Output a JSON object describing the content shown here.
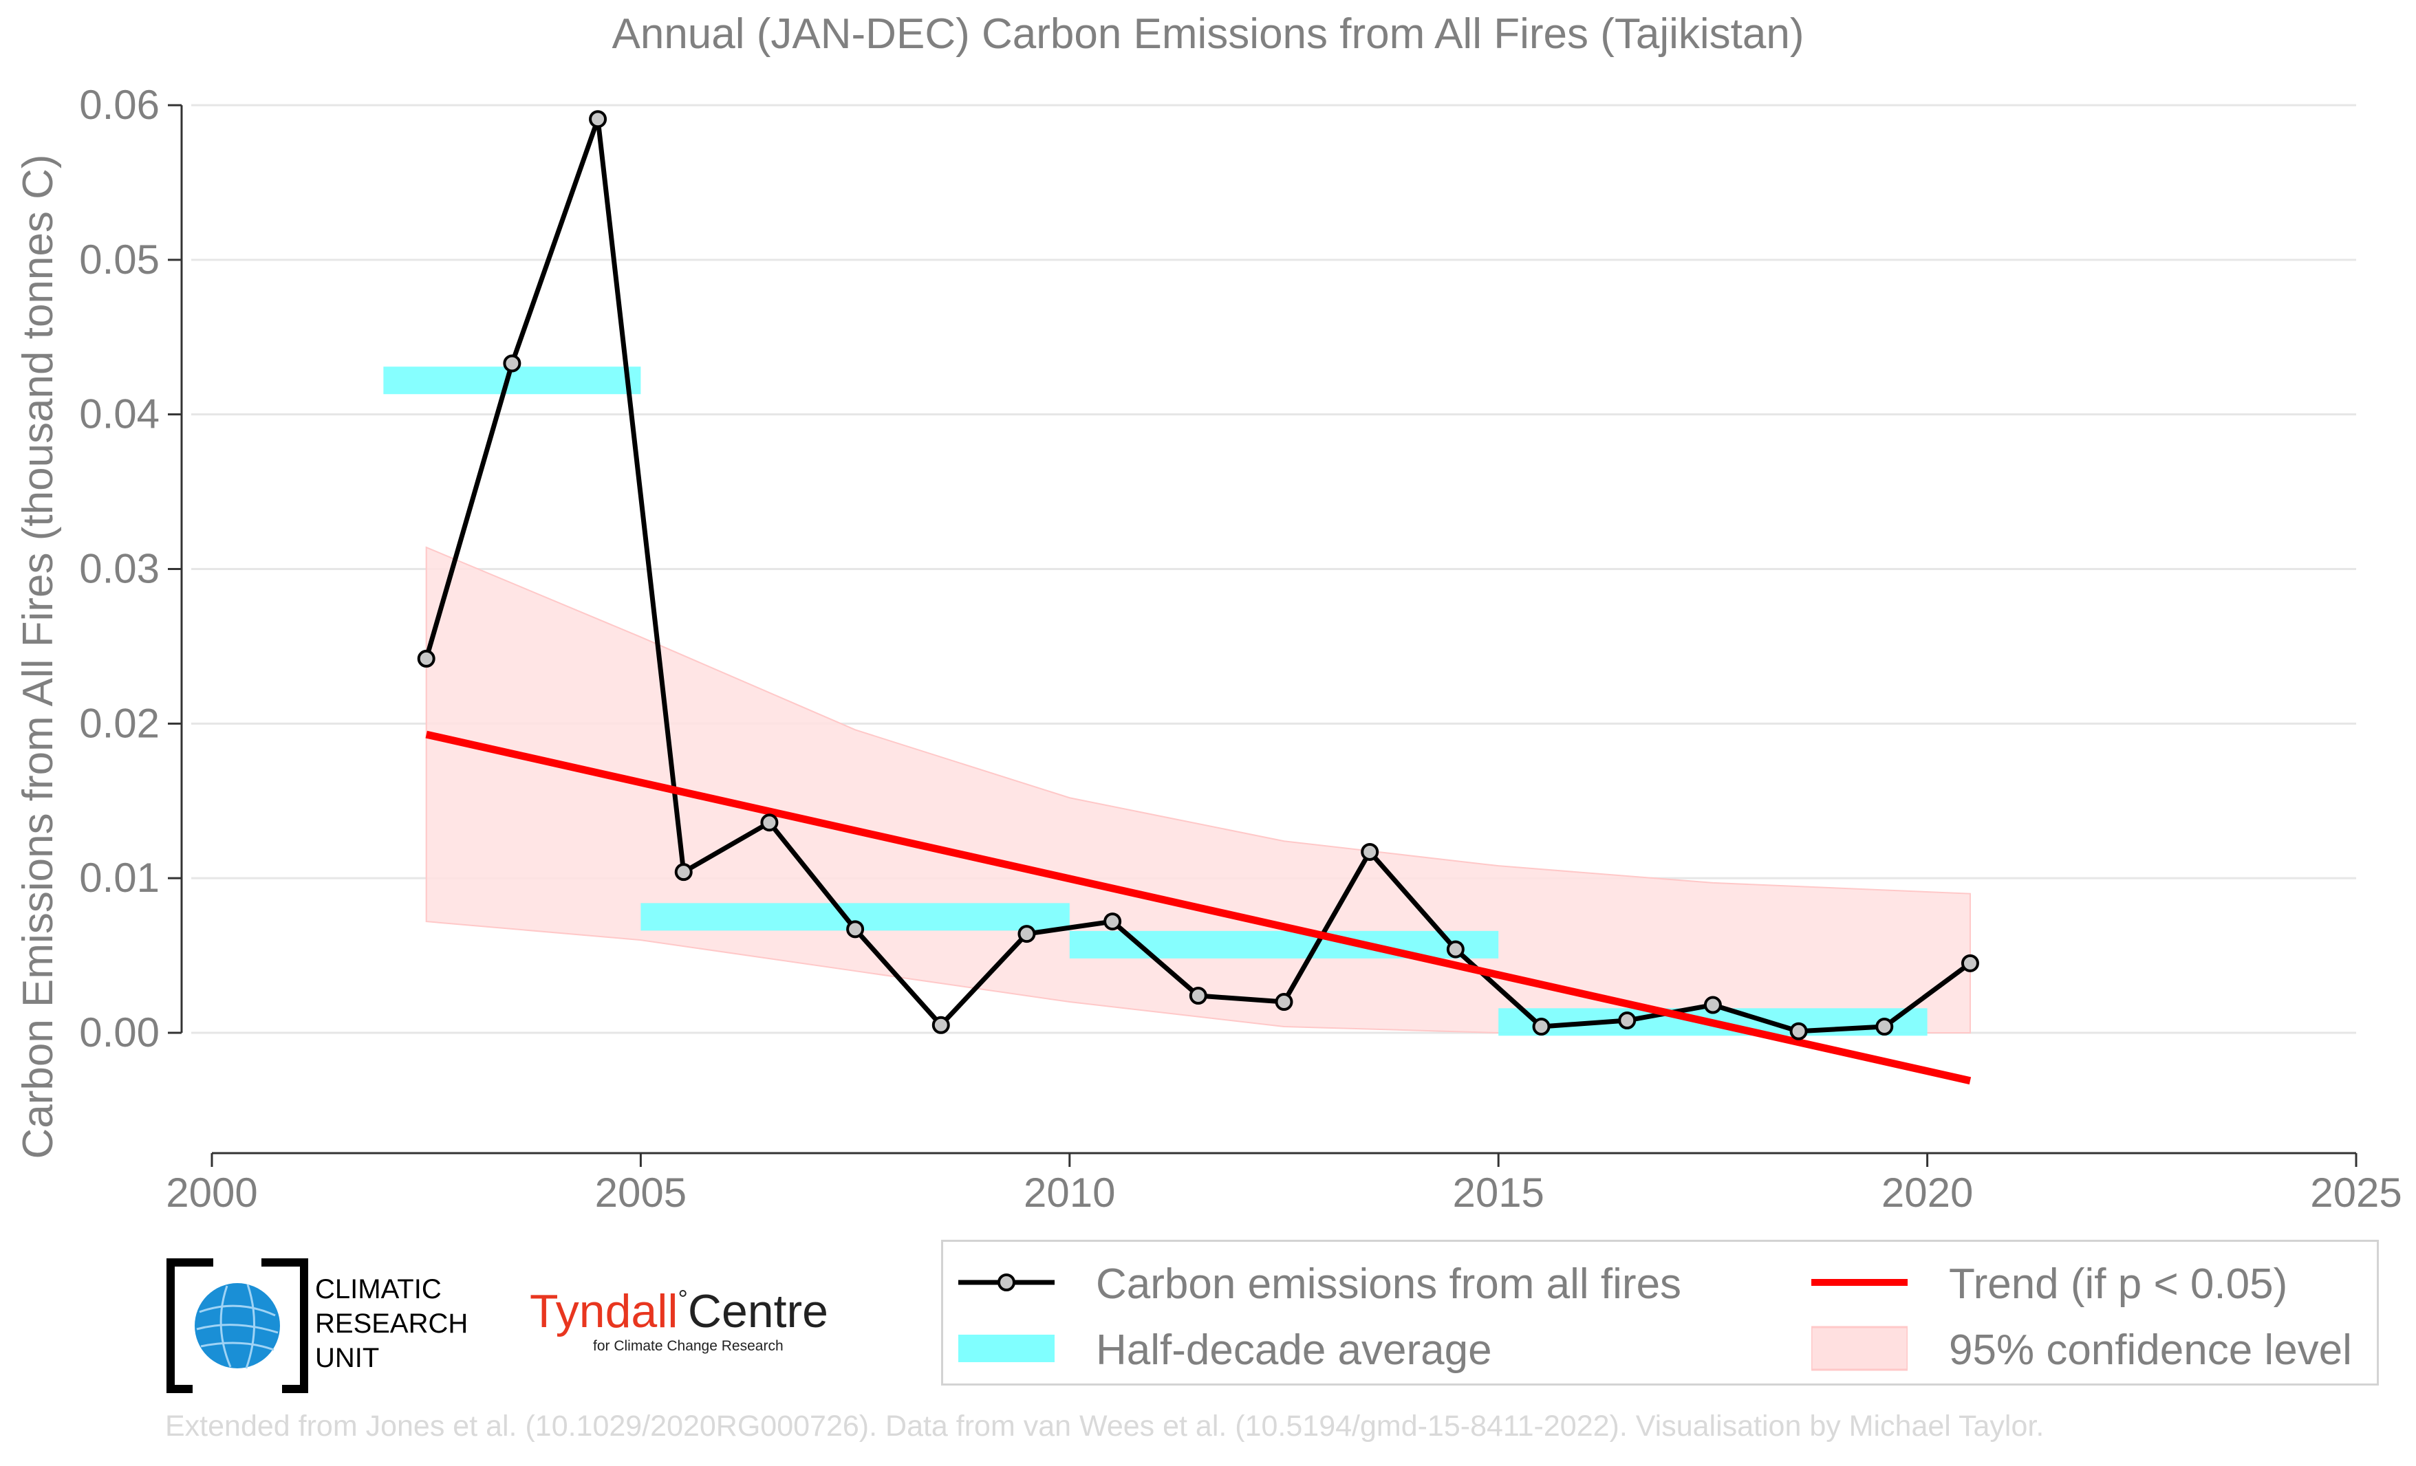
{
  "chart_data": {
    "type": "line",
    "title": "Annual (JAN-DEC) Carbon Emissions from All Fires (Tajikistan)",
    "ylabel": "Carbon Emissions from All Fires (thousand tonnes C)",
    "xlabel": "",
    "xlim": [
      2000,
      2025
    ],
    "ylim": [
      -0.008,
      0.06
    ],
    "x_ticks": [
      2000,
      2005,
      2010,
      2015,
      2020,
      2025
    ],
    "x_tick_labels": [
      "2000",
      "2005",
      "2010",
      "2015",
      "2020",
      "2025"
    ],
    "y_ticks": [
      0.0,
      0.01,
      0.02,
      0.03,
      0.04,
      0.05,
      0.06
    ],
    "y_tick_labels": [
      "0.00",
      "0.01",
      "0.02",
      "0.03",
      "0.04",
      "0.05",
      "0.06"
    ],
    "grid": "horizontal",
    "legend_position": "bottom-right, below plot",
    "series": [
      {
        "name": "Carbon emissions from all fires",
        "type": "line-marker",
        "color": "#000000",
        "marker_fill": "#c8c8c8",
        "x": [
          2002.5,
          2003.5,
          2004.5,
          2005.5,
          2006.5,
          2007.5,
          2008.5,
          2009.5,
          2010.5,
          2011.5,
          2012.5,
          2013.5,
          2014.5,
          2015.5,
          2016.5,
          2017.5,
          2018.5,
          2019.5,
          2020.5
        ],
        "y": [
          0.0242,
          0.0433,
          0.0591,
          0.0104,
          0.0136,
          0.0067,
          0.0005,
          0.0064,
          0.0072,
          0.0024,
          0.002,
          0.0117,
          0.0054,
          0.0004,
          0.0008,
          0.0018,
          0.0001,
          0.0004,
          0.0045
        ]
      },
      {
        "name": "Half-decade average",
        "type": "step-bar",
        "color": "#80ffff",
        "segments": [
          {
            "x0": 2002,
            "x1": 2005,
            "y": 0.0422
          },
          {
            "x0": 2005,
            "x1": 2010,
            "y": 0.0075
          },
          {
            "x0": 2010,
            "x1": 2015,
            "y": 0.0057
          },
          {
            "x0": 2015,
            "x1": 2020,
            "y": 0.0007
          }
        ]
      },
      {
        "name": "Trend (if p < 0.05)",
        "type": "line",
        "color": "#ff0000",
        "x": [
          2002.5,
          2020.5
        ],
        "y": [
          0.0193,
          -0.0031
        ]
      },
      {
        "name": "95% confidence level",
        "type": "band",
        "color": "#ffe0e0",
        "x": [
          2002.5,
          2005,
          2007.5,
          2010,
          2012.5,
          2015,
          2017.5,
          2020.5
        ],
        "upper": [
          0.0314,
          0.0256,
          0.0196,
          0.0152,
          0.0124,
          0.0108,
          0.0097,
          0.009
        ],
        "lower": [
          0.0072,
          0.006,
          0.004,
          0.002,
          0.0004,
          0.0,
          0.0,
          0.0
        ]
      }
    ]
  },
  "legend": {
    "items": [
      {
        "label": "Carbon emissions from all fires"
      },
      {
        "label": "Trend (if p < 0.05)"
      },
      {
        "label": "Half-decade average"
      },
      {
        "label": "95% confidence level"
      }
    ]
  },
  "logos": {
    "cru": {
      "line1": "CLIMATIC",
      "line2": "RESEARCH",
      "line3": "UNIT"
    },
    "tyndall": {
      "name": "Tyndall",
      "degree": "°",
      "centre": "Centre",
      "subtitle": "for Climate Change Research"
    }
  },
  "footer": "Extended from Jones et al. (10.1029/2020RG000726). Data from van Wees et al. (10.5194/gmd-15-8411-2022). Visualisation by Michael Taylor."
}
